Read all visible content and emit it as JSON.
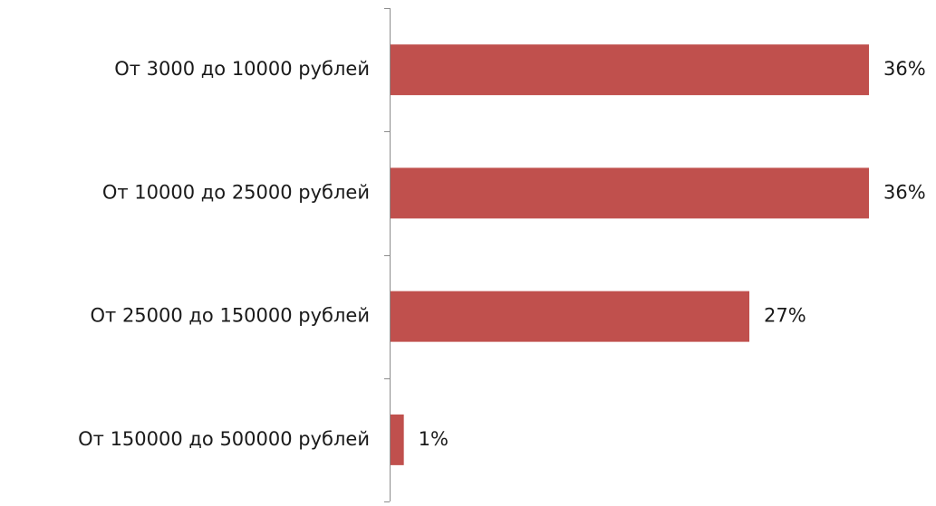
{
  "chart_data": {
    "type": "bar",
    "orientation": "horizontal",
    "categories": [
      "От 3000 до 10000 рублей",
      "От 10000 до 25000 рублей",
      "От 25000 до 150000 рублей",
      "От 150000 до 500000 рублей"
    ],
    "values": [
      36,
      36,
      27,
      1
    ],
    "value_labels": [
      "36%",
      "36%",
      "27%",
      "1%"
    ],
    "unit": "%",
    "xlim": [
      0,
      36
    ],
    "grid": false,
    "legend": "none",
    "bar_color": "#c0504d"
  }
}
